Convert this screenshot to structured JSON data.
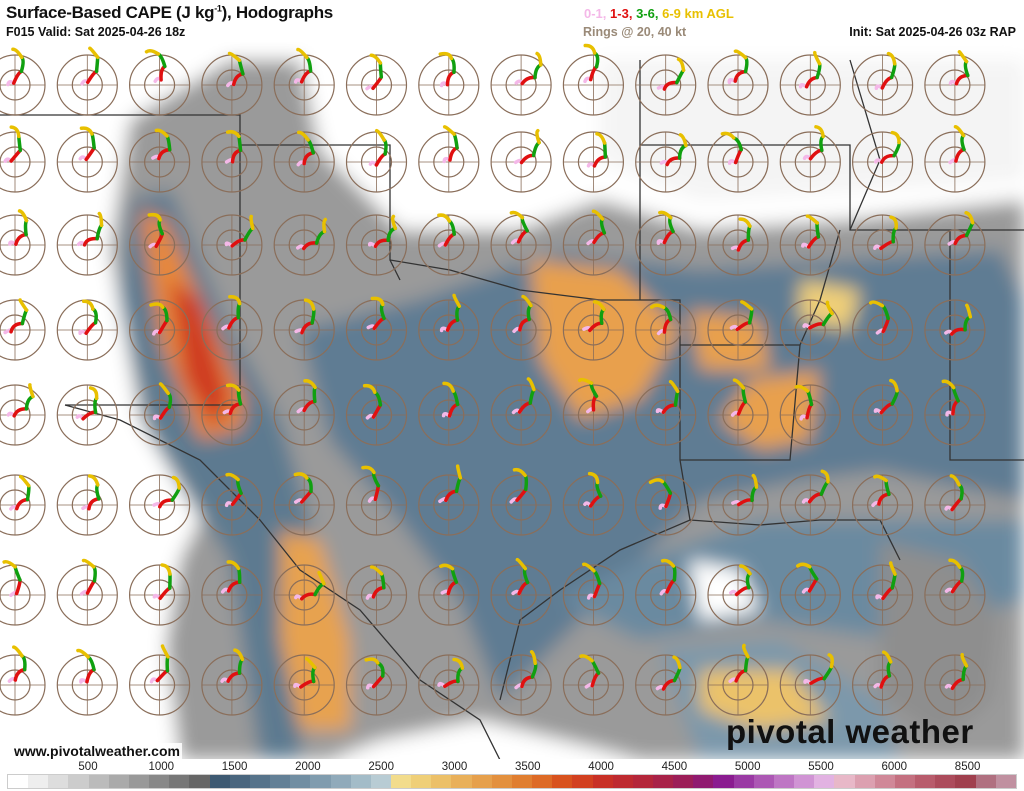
{
  "header": {
    "title": "Surface-Based CAPE (J kg",
    "title_sup": "-1",
    "title_end": "), Hodographs",
    "valid": "F015 Valid: Sat 2025-04-26 18z",
    "layers": [
      {
        "label": "0-1,",
        "color": "#f4b8e8"
      },
      {
        "label": "1-3,",
        "color": "#e01010"
      },
      {
        "label": "3-6,",
        "color": "#10a010"
      },
      {
        "label": "6-9 km AGL",
        "color": "#e8c000"
      }
    ],
    "rings": "Rings @ 20, 40 kt",
    "init": "Init: Sat 2025-04-26 03z RAP"
  },
  "footer": {
    "url": "www.pivotalweather.com",
    "logo": "pivotal weather"
  },
  "colorbar": {
    "ticks": [
      "500",
      "1000",
      "1500",
      "2000",
      "2500",
      "3000",
      "3500",
      "4000",
      "4500",
      "5000",
      "5500",
      "6000",
      "8500"
    ],
    "colors": [
      "#ffffff",
      "#eeeeee",
      "#dddddd",
      "#cccccc",
      "#bbbbbb",
      "#aaaaaa",
      "#999999",
      "#888888",
      "#777777",
      "#666666",
      "#3e5a72",
      "#4a667e",
      "#56738a",
      "#638096",
      "#718ea2",
      "#809cae",
      "#90aaba",
      "#a3bcc8",
      "#b8ccd4",
      "#f2dc8c",
      "#efcf78",
      "#ecc068",
      "#e9b05a",
      "#e6a04c",
      "#e3903e",
      "#e07e30",
      "#dd6a26",
      "#d8521e",
      "#d24020",
      "#c83026",
      "#be2a30",
      "#b4263a",
      "#a82248",
      "#9c1e58",
      "#901a70",
      "#8a1c90",
      "#9a3aa4",
      "#ac58b4",
      "#be76c4",
      "#d094d4",
      "#e2b2e2",
      "#e8b8c8",
      "#dca0b0",
      "#d08898",
      "#c47080",
      "#b85c6c",
      "#ac4c5c",
      "#a0404e",
      "#b07080",
      "#c090a0"
    ]
  },
  "map": {
    "field": "Surface-Based CAPE",
    "hodograph_colors": [
      "#f4b8e8",
      "#e01010",
      "#10a010",
      "#e8c000"
    ],
    "ring_color": "#8a6e5a"
  }
}
